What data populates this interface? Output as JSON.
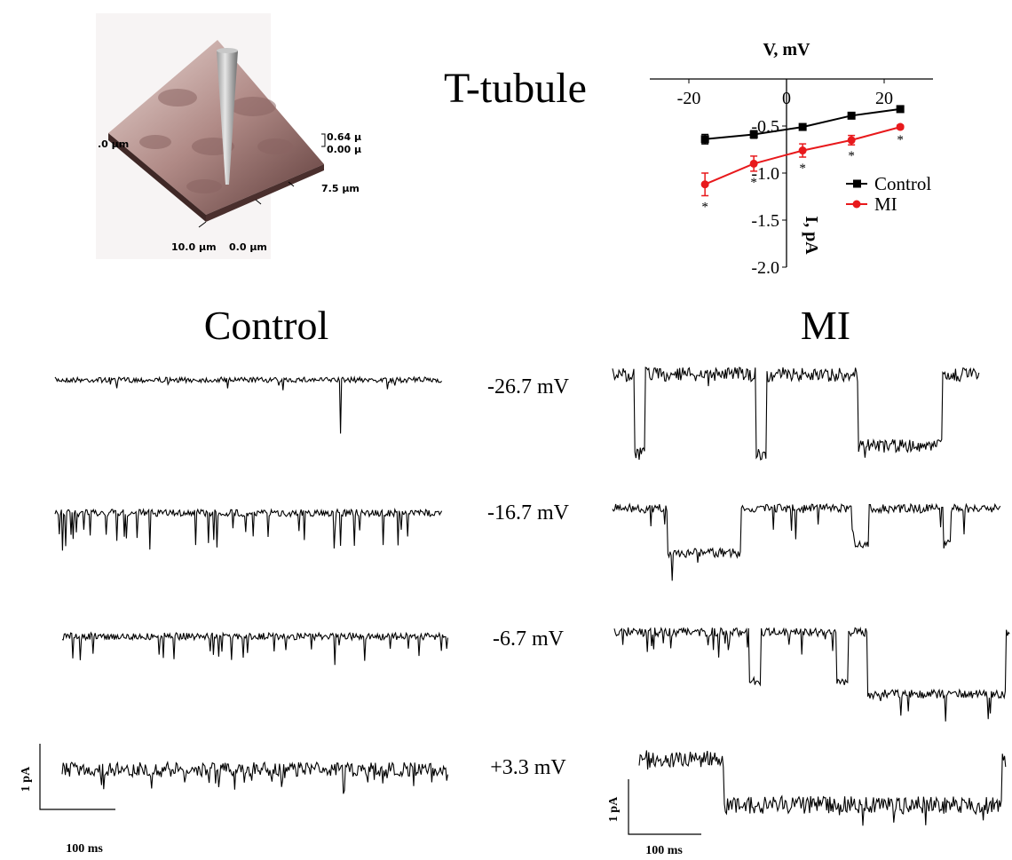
{
  "afm_labels": [
    ".0 μm",
    "0.64 μ",
    "0.00 μ",
    "7.5 μm",
    "10.0 μm",
    "0.0 μm"
  ],
  "panel_title": "T-tubule",
  "group_titles": [
    "Control",
    "MI"
  ],
  "voltages": [
    "-26.7 mV",
    "-16.7 mV",
    "-6.7 mV",
    "+3.3 mV"
  ],
  "scale_bars": [
    {
      "current": "1 pA",
      "time": "100 ms"
    },
    {
      "current": "1 pA",
      "time": "100 ms"
    }
  ],
  "chart_data": {
    "type": "line",
    "x_label": "V, mV",
    "y_label": "I, pA",
    "x": [
      -16.7,
      -6.7,
      3.3,
      13.3,
      23.3
    ],
    "series": [
      {
        "name": "Control",
        "color": "#000000",
        "marker": "square",
        "values": [
          -0.64,
          -0.59,
          -0.51,
          -0.39,
          -0.32
        ],
        "errors": [
          0.05,
          0.04,
          0.03,
          0.02,
          0.02
        ]
      },
      {
        "name": "MI",
        "color": "#e8191c",
        "marker": "circle",
        "values": [
          -1.12,
          -0.9,
          -0.76,
          -0.65,
          -0.51
        ],
        "errors": [
          0.12,
          0.08,
          0.07,
          0.05,
          0.02
        ]
      }
    ],
    "significance": [
      "*",
      "*",
      "*",
      "*",
      "*"
    ],
    "xlim": [
      -28,
      30
    ],
    "xticks": [
      -20,
      0,
      20
    ],
    "ylim": [
      -2,
      0
    ],
    "yticks": [
      -0.5,
      {
        "value": -1,
        "label": "-1.0"
      },
      -1.5,
      {
        "value": -2,
        "label": "-2.0"
      }
    ]
  }
}
